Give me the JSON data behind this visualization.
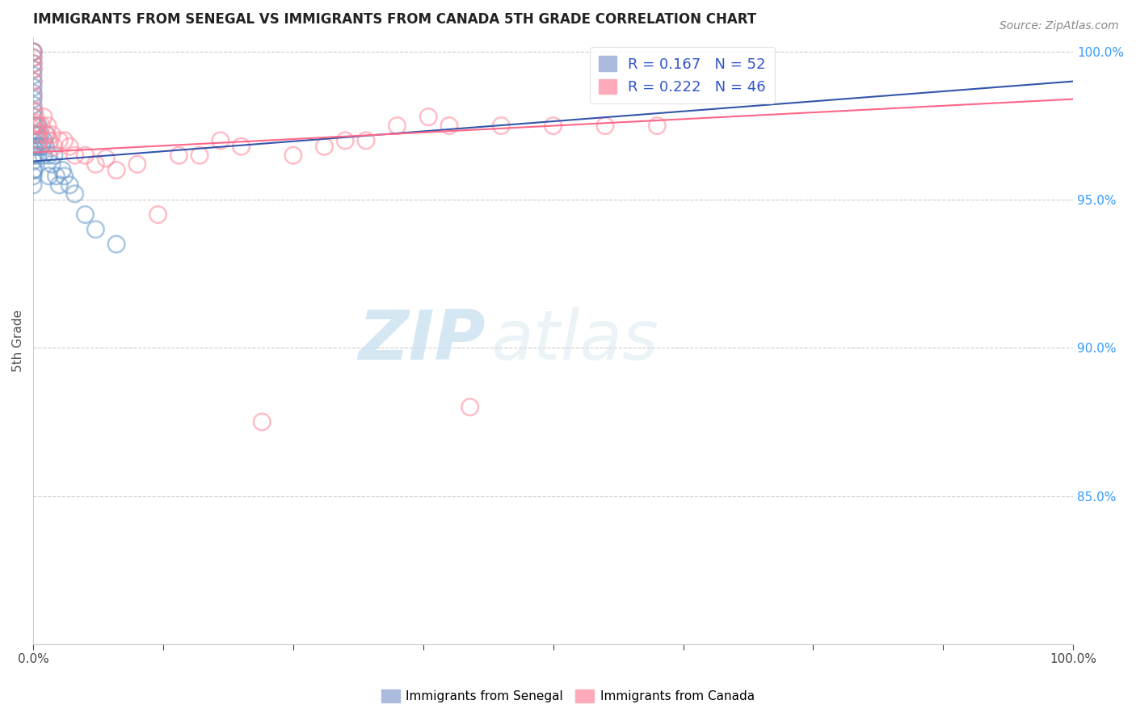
{
  "title": "IMMIGRANTS FROM SENEGAL VS IMMIGRANTS FROM CANADA 5TH GRADE CORRELATION CHART",
  "source_text": "Source: ZipAtlas.com",
  "ylabel": "5th Grade",
  "series1_label": "Immigrants from Senegal",
  "series2_label": "Immigrants from Canada",
  "series1_color": "#6699cc",
  "series2_color": "#ff8899",
  "series1_trendline_color": "#3355aa",
  "series2_trendline_color": "#ff6688",
  "series1_R": 0.167,
  "series1_N": 52,
  "series2_R": 0.222,
  "series2_N": 46,
  "xlim": [
    0.0,
    1.0
  ],
  "ylim": [
    0.8,
    1.005
  ],
  "yticklabels_right": [
    "85.0%",
    "90.0%",
    "95.0%",
    "100.0%"
  ],
  "yticklabels_right_vals": [
    0.85,
    0.9,
    0.95,
    1.0
  ],
  "watermark_text": "ZIP",
  "watermark_text2": "atlas",
  "grid_color": "#cccccc",
  "background_color": "#ffffff",
  "series1_x": [
    0.0,
    0.0,
    0.0,
    0.0,
    0.0,
    0.0,
    0.0,
    0.0,
    0.0,
    0.0,
    0.0,
    0.0,
    0.0,
    0.0,
    0.0,
    0.0,
    0.0,
    0.0,
    0.0,
    0.0,
    0.0,
    0.0,
    0.001,
    0.001,
    0.001,
    0.002,
    0.002,
    0.003,
    0.003,
    0.004,
    0.005,
    0.005,
    0.006,
    0.007,
    0.008,
    0.01,
    0.01,
    0.012,
    0.013,
    0.015,
    0.015,
    0.018,
    0.02,
    0.022,
    0.025,
    0.028,
    0.03,
    0.035,
    0.04,
    0.05,
    0.06,
    0.08
  ],
  "series1_y": [
    1.0,
    1.0,
    0.998,
    0.996,
    0.994,
    0.992,
    0.99,
    0.988,
    0.986,
    0.984,
    0.982,
    0.98,
    0.978,
    0.975,
    0.972,
    0.97,
    0.968,
    0.965,
    0.963,
    0.96,
    0.958,
    0.955,
    0.975,
    0.968,
    0.96,
    0.972,
    0.965,
    0.975,
    0.968,
    0.972,
    0.975,
    0.968,
    0.97,
    0.972,
    0.968,
    0.97,
    0.965,
    0.968,
    0.972,
    0.965,
    0.958,
    0.962,
    0.965,
    0.958,
    0.955,
    0.96,
    0.958,
    0.955,
    0.952,
    0.945,
    0.94,
    0.935
  ],
  "series2_x": [
    0.0,
    0.0,
    0.0,
    0.0,
    0.0,
    0.0,
    0.001,
    0.002,
    0.003,
    0.004,
    0.005,
    0.006,
    0.008,
    0.01,
    0.012,
    0.014,
    0.016,
    0.018,
    0.02,
    0.025,
    0.03,
    0.035,
    0.04,
    0.05,
    0.06,
    0.07,
    0.08,
    0.1,
    0.12,
    0.14,
    0.16,
    0.18,
    0.2,
    0.22,
    0.25,
    0.28,
    0.3,
    0.32,
    0.35,
    0.38,
    0.4,
    0.42,
    0.45,
    0.5,
    0.55,
    0.6
  ],
  "series2_y": [
    1.0,
    0.998,
    0.996,
    0.994,
    0.99,
    0.985,
    0.98,
    0.978,
    0.976,
    0.975,
    0.972,
    0.97,
    0.975,
    0.978,
    0.972,
    0.975,
    0.97,
    0.972,
    0.968,
    0.97,
    0.97,
    0.968,
    0.965,
    0.965,
    0.962,
    0.964,
    0.96,
    0.962,
    0.945,
    0.965,
    0.965,
    0.97,
    0.968,
    0.875,
    0.965,
    0.968,
    0.97,
    0.97,
    0.975,
    0.978,
    0.975,
    0.88,
    0.975,
    0.975,
    0.975,
    0.975
  ]
}
